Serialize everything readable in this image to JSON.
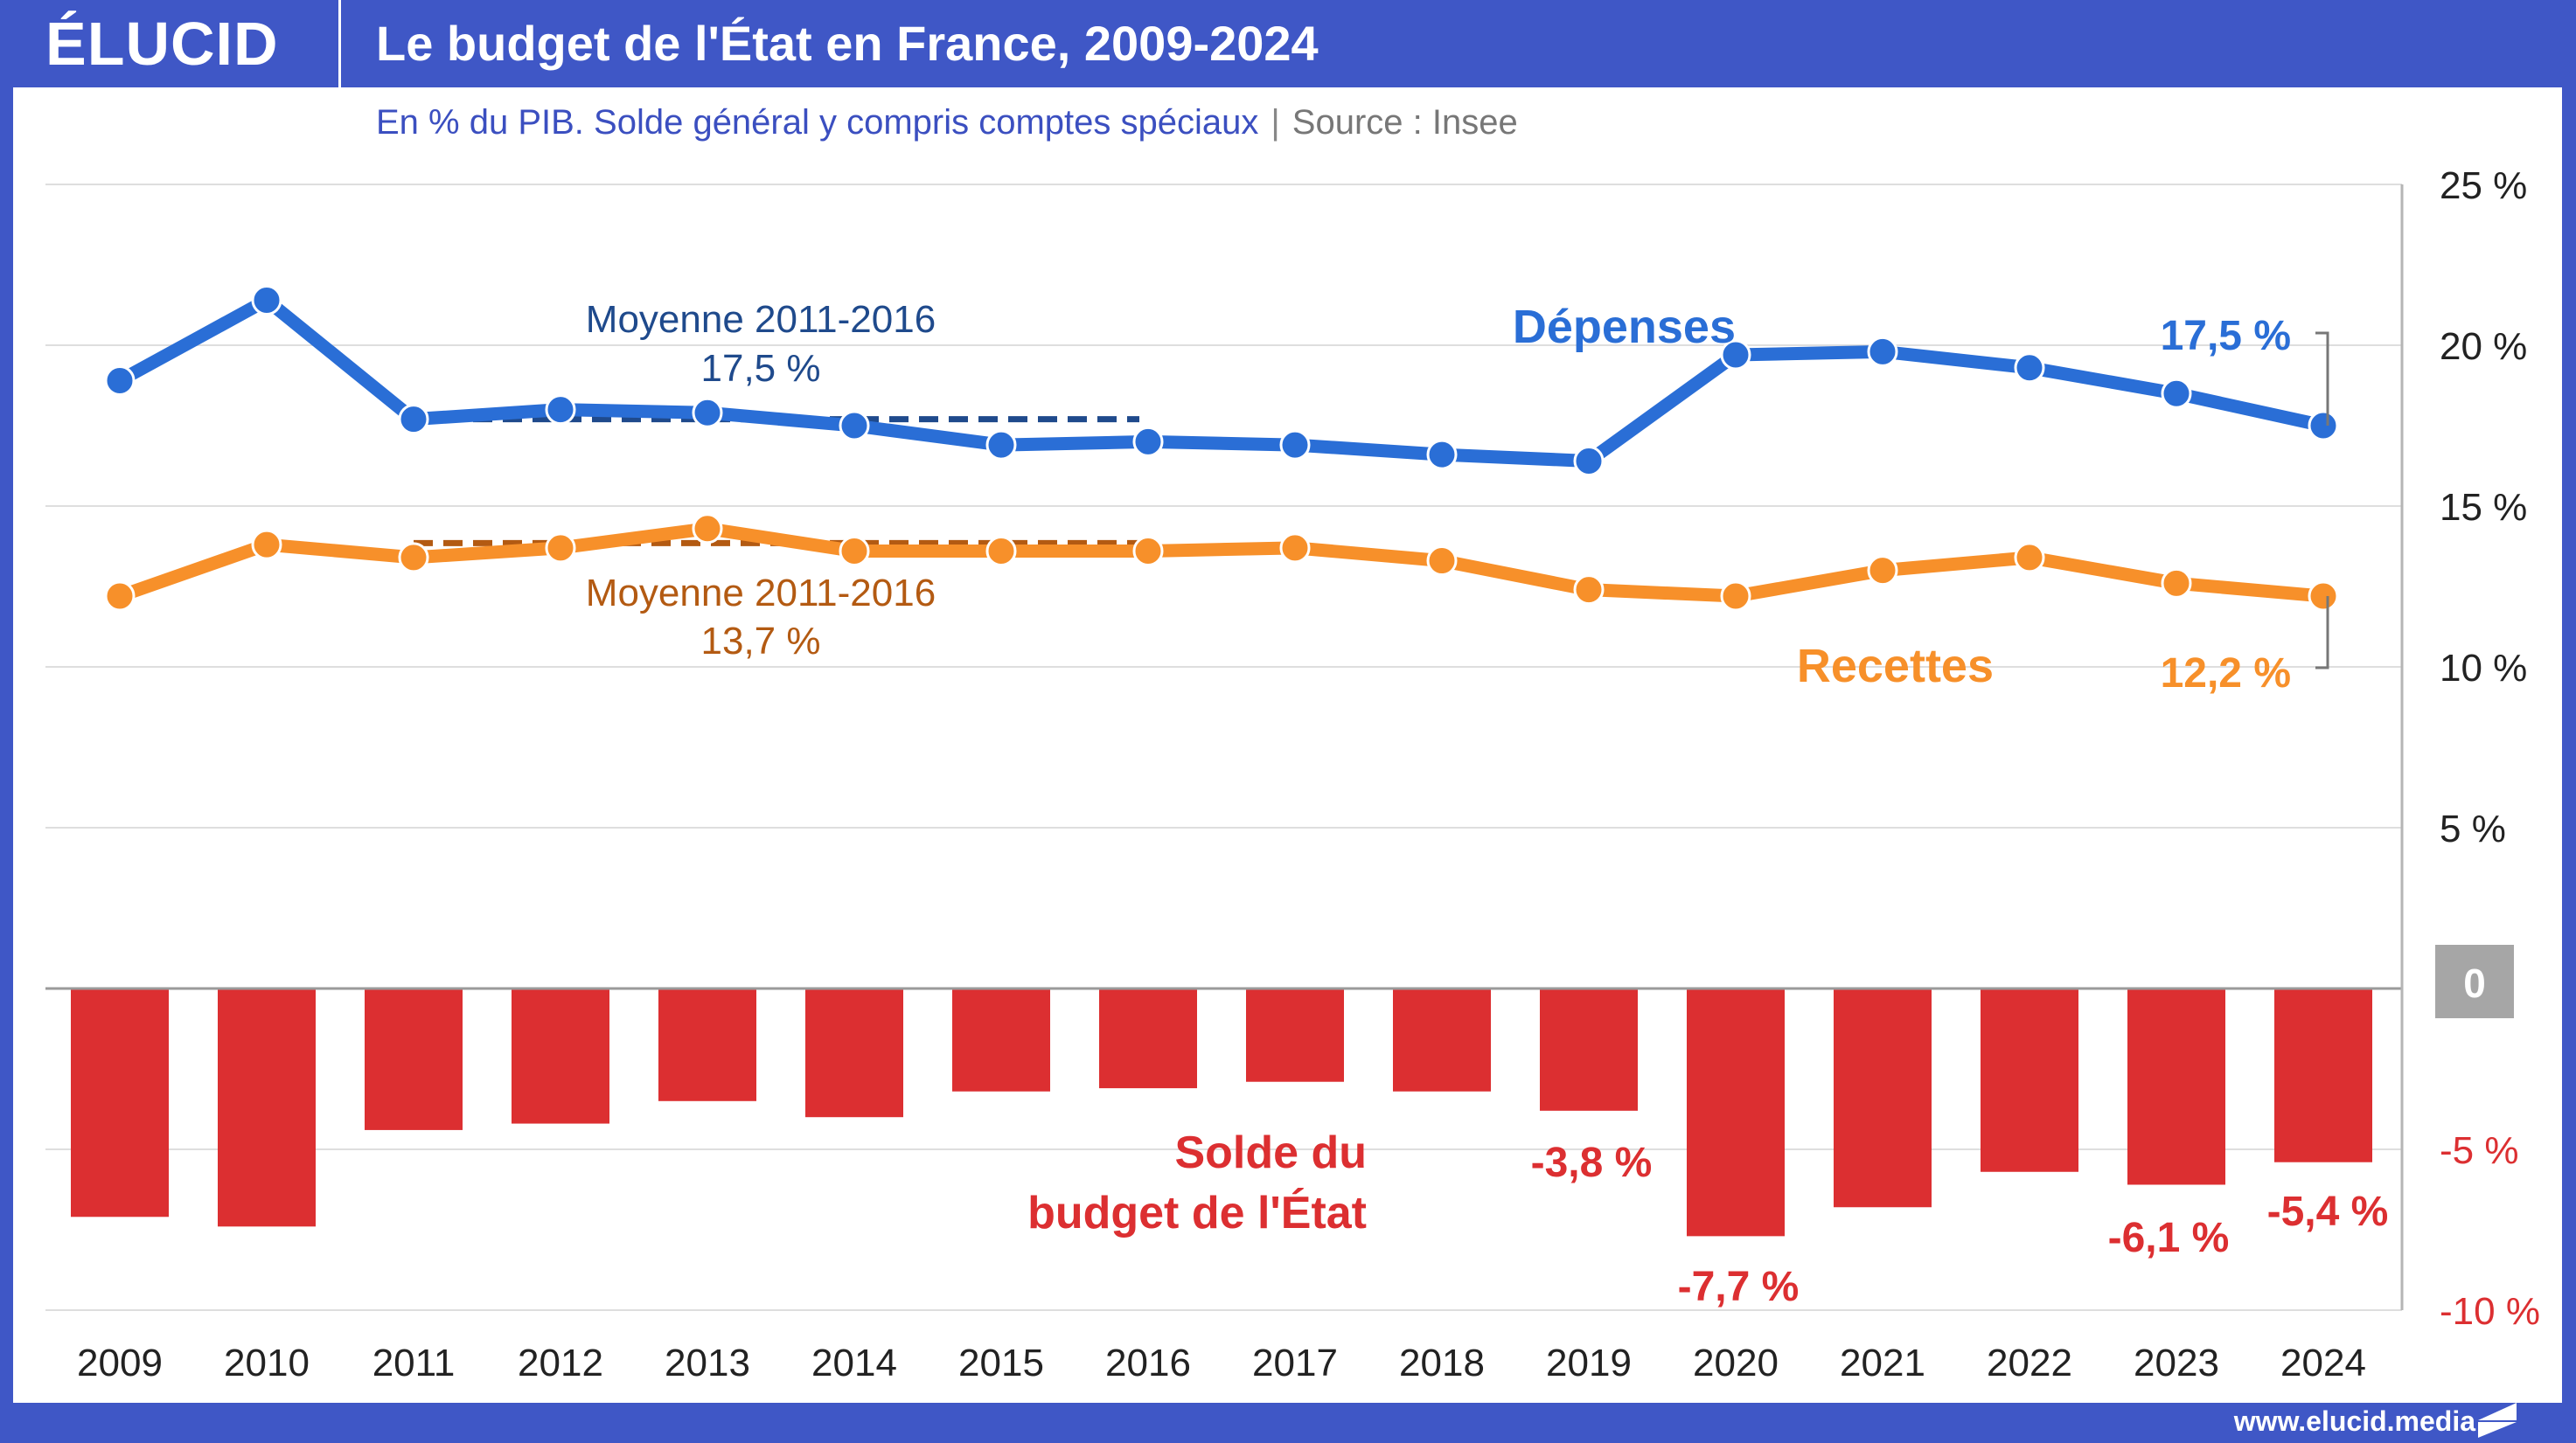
{
  "header": {
    "logo": "ÉLUCID",
    "title": "Le budget de l'État en France, 2009-2024"
  },
  "subtitle": {
    "text": "En % du PIB. Solde général y compris comptes spéciaux",
    "separator": "|",
    "source": "Source : Insee"
  },
  "footer": {
    "url": "www.elucid.media"
  },
  "colors": {
    "brand": "#3f57c6",
    "depenses": "#2a6ed6",
    "recettes": "#f7902a",
    "solde": "#dc2f31",
    "moyenne_depenses": "#1f4a8c",
    "moyenne_recettes": "#b35a12",
    "zero_badge": "#a6a6a6"
  },
  "chart_data": {
    "type": "line+bar",
    "title": "Le budget de l'État en France, 2009-2024",
    "subtitle": "En % du PIB. Solde général y compris comptes spéciaux",
    "source": "Insee",
    "categories": [
      "2009",
      "2010",
      "2011",
      "2012",
      "2013",
      "2014",
      "2015",
      "2016",
      "2017",
      "2018",
      "2019",
      "2020",
      "2021",
      "2022",
      "2023",
      "2024"
    ],
    "ylim": [
      -10,
      25
    ],
    "yticks": [
      {
        "value": 25,
        "label": "25 %"
      },
      {
        "value": 20,
        "label": "20 %"
      },
      {
        "value": 15,
        "label": "15 %"
      },
      {
        "value": 10,
        "label": "10 %"
      },
      {
        "value": 5,
        "label": "5 %"
      },
      {
        "value": 0,
        "label": "0"
      },
      {
        "value": -5,
        "label": "-5 %"
      },
      {
        "value": -10,
        "label": "-10 %"
      }
    ],
    "yaxis_position": "right",
    "grid": true,
    "series": [
      {
        "name": "Dépenses",
        "type": "line",
        "values": [
          18.9,
          21.4,
          17.7,
          18.0,
          17.9,
          17.5,
          16.9,
          17.0,
          16.9,
          16.6,
          16.4,
          19.7,
          19.8,
          19.3,
          18.5,
          17.5
        ]
      },
      {
        "name": "Recettes",
        "type": "line",
        "values": [
          12.2,
          13.8,
          13.4,
          13.7,
          14.3,
          13.6,
          13.6,
          13.6,
          13.7,
          13.3,
          12.4,
          12.2,
          13.0,
          13.4,
          12.6,
          12.2
        ]
      },
      {
        "name": "Solde du budget de l'État",
        "type": "bar",
        "values": [
          -7.1,
          -7.4,
          -4.4,
          -4.2,
          -3.5,
          -4.0,
          -3.2,
          -3.1,
          -2.9,
          -3.2,
          -3.8,
          -7.7,
          -6.8,
          -5.7,
          -6.1,
          -5.4
        ]
      }
    ],
    "annotations": {
      "depenses_label": "Dépenses",
      "recettes_label": "Recettes",
      "solde_label_line1": "Solde du",
      "solde_label_line2": "budget de l'État",
      "depenses_last": "17,5 %",
      "recettes_last": "12,2 %",
      "moyenne_depenses": {
        "label": "Moyenne 2011-2016",
        "value_label": "17,5 %",
        "value": 17.5,
        "from": "2011",
        "to": "2016"
      },
      "moyenne_recettes": {
        "label": "Moyenne 2011-2016",
        "value_label": "13,7 %",
        "value": 13.7,
        "from": "2011",
        "to": "2016"
      },
      "bar_labels": [
        {
          "year": "2019",
          "text": "-3,8 %"
        },
        {
          "year": "2020",
          "text": "-7,7 %"
        },
        {
          "year": "2023",
          "text": "-6,1 %"
        },
        {
          "year": "2024",
          "text": "-5,4 %"
        }
      ]
    }
  }
}
